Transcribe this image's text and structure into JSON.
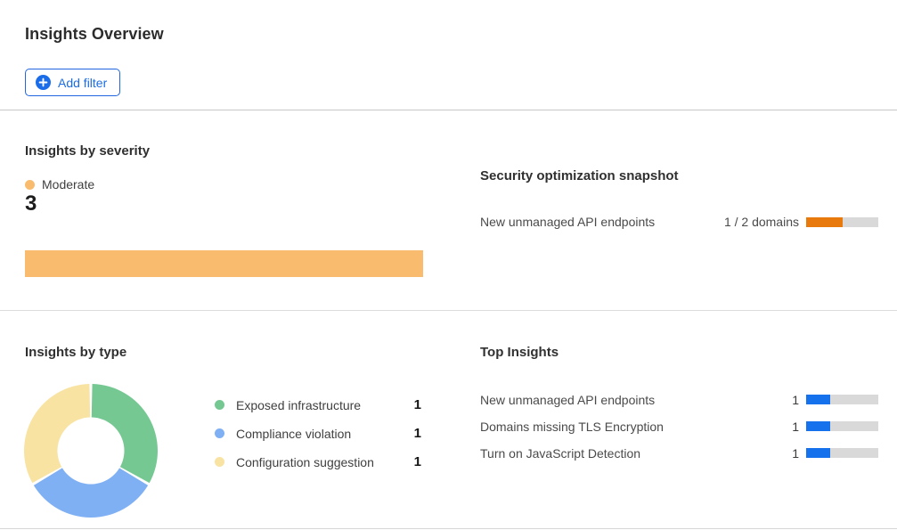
{
  "page": {
    "title": "Insights Overview"
  },
  "toolbar": {
    "add_filter": "Add filter"
  },
  "colors": {
    "accent_blue": "#1A6CE8",
    "top_bar_blue": "#1672EC",
    "severity_orange": "#F9BC6E",
    "snapshot_orange": "#E8790D",
    "track_gray": "#D9D9D9",
    "donut_green": "#75C892",
    "donut_blue": "#7FB0F4",
    "donut_yellow": "#F8E3A3"
  },
  "insights_by_severity": {
    "title": "Insights by severity",
    "chart_data": {
      "type": "bar",
      "orientation": "horizontal",
      "categories": [
        "Moderate"
      ],
      "values": [
        3
      ],
      "max": 3,
      "colors": [
        "#F9BC6E"
      ]
    },
    "legend": {
      "label": "Moderate",
      "value": "3",
      "color": "#F9BC6E"
    }
  },
  "security_snapshot": {
    "title": "Security optimization snapshot",
    "rows": [
      {
        "label": "New unmanaged API endpoints",
        "progress_label": "1 / 2 domains",
        "value": 1,
        "total": 2,
        "fill_color": "#E8790D"
      }
    ]
  },
  "insights_by_type": {
    "title": "Insights by type",
    "chart_data": {
      "type": "pie",
      "donut": true,
      "categories": [
        "Exposed infrastructure",
        "Compliance violation",
        "Configuration suggestion"
      ],
      "values": [
        1,
        1,
        1
      ],
      "colors": [
        "#75C892",
        "#7FB0F4",
        "#F8E3A3"
      ]
    },
    "legend": [
      {
        "label": "Exposed infrastructure",
        "value": "1",
        "color": "#75C892"
      },
      {
        "label": "Compliance violation",
        "value": "1",
        "color": "#7FB0F4"
      },
      {
        "label": "Configuration suggestion",
        "value": "1",
        "color": "#F8E3A3"
      }
    ]
  },
  "top_insights": {
    "title": "Top Insights",
    "chart_data": {
      "type": "bar",
      "orientation": "horizontal",
      "categories": [
        "New unmanaged API endpoints",
        "Domains missing TLS Encryption",
        "Turn on JavaScript Detection"
      ],
      "values": [
        1,
        1,
        1
      ],
      "max": 3,
      "bar_color": "#1672EC"
    },
    "rows": [
      {
        "label": "New unmanaged API endpoints",
        "value": "1"
      },
      {
        "label": "Domains missing TLS Encryption",
        "value": "1"
      },
      {
        "label": "Turn on JavaScript Detection",
        "value": "1"
      }
    ]
  }
}
